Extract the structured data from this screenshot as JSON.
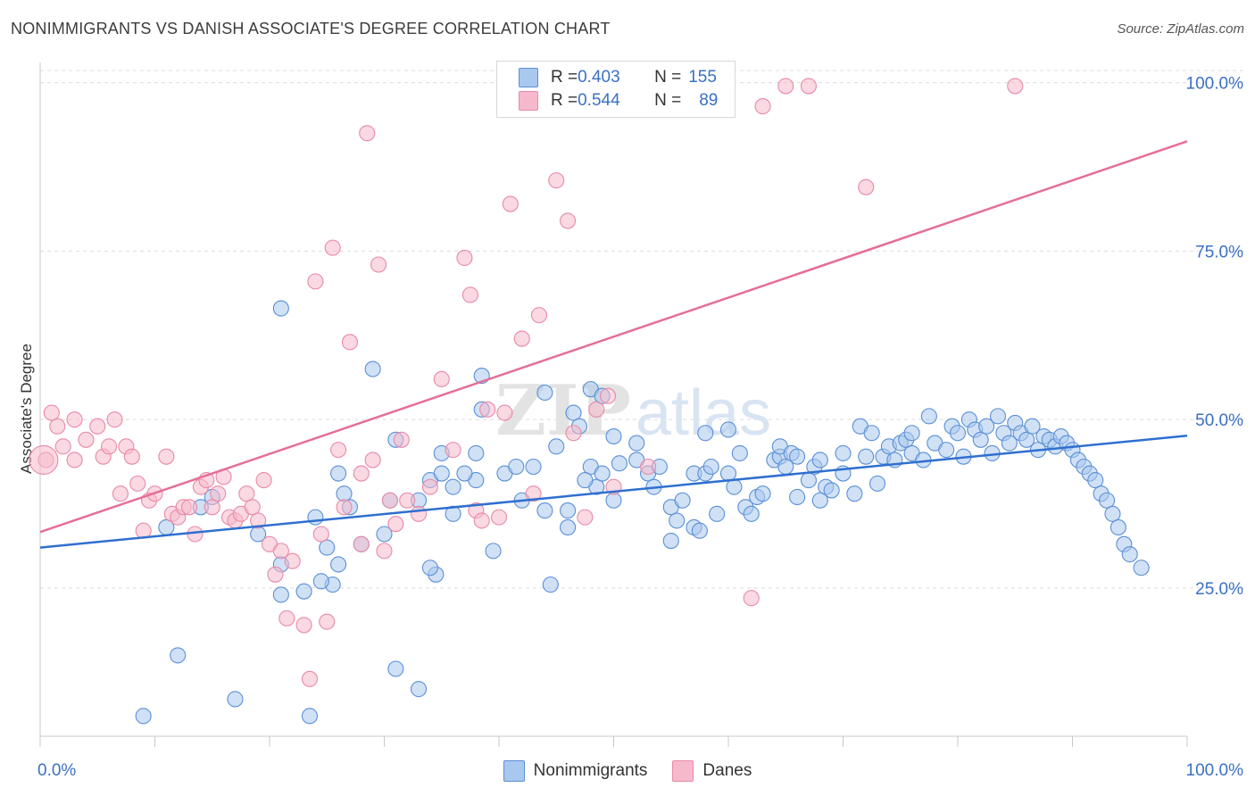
{
  "header": {
    "title": "NONIMMIGRANTS VS DANISH ASSOCIATE'S DEGREE CORRELATION CHART",
    "source": "Source: ZipAtlas.com"
  },
  "legend": {
    "rows": [
      {
        "r_label": "R = ",
        "r_value": "0.403",
        "n_label": "N = ",
        "n_value": "155"
      },
      {
        "r_label": "R = ",
        "r_value": "0.544",
        "n_label": "N = ",
        "n_value": "89"
      }
    ],
    "bottom": [
      "Nonimmigrants",
      "Danes"
    ]
  },
  "colors": {
    "blue_fill": "#a9c8ef",
    "blue_stroke": "#5a8fd6",
    "blue_line": "#2f6fcf",
    "pink_fill": "#f6b9cb",
    "pink_stroke": "#e889a8",
    "pink_line": "#e56e99",
    "tick_text": "#3b70c4"
  },
  "chart_data": {
    "type": "scatter",
    "title": "NONIMMIGRANTS VS DANISH ASSOCIATE'S DEGREE CORRELATION CHART",
    "xlabel": "",
    "ylabel": "Associate's Degree",
    "xlim": [
      0,
      100
    ],
    "ylim": [
      3,
      103
    ],
    "x_tick_labels": [
      {
        "value": 0,
        "label": "0.0%"
      },
      {
        "value": 100,
        "label": "100.0%"
      }
    ],
    "y_tick_labels": [
      {
        "value": 25,
        "label": "25.0%"
      },
      {
        "value": 50,
        "label": "50.0%"
      },
      {
        "value": 75,
        "label": "75.0%"
      },
      {
        "value": 100,
        "label": "100.0%"
      }
    ],
    "grid": "horizontal dashed",
    "watermark": "ZIPatlas",
    "series": [
      {
        "name": "Nonimmigrants",
        "r": 0.403,
        "n": 155,
        "trend": {
          "x": [
            0,
            100
          ],
          "y": [
            31.0,
            47.6
          ]
        },
        "points": [
          [
            9,
            6
          ],
          [
            12,
            15
          ],
          [
            11,
            34
          ],
          [
            17,
            8.5
          ],
          [
            21,
            66.5
          ],
          [
            23.5,
            6
          ],
          [
            23,
            24.5
          ],
          [
            21,
            24
          ],
          [
            25.5,
            25.5
          ],
          [
            21,
            28.5
          ],
          [
            26,
            42
          ],
          [
            27,
            37
          ],
          [
            26.5,
            39
          ],
          [
            24,
            35.5
          ],
          [
            25,
            31
          ],
          [
            28,
            31.5
          ],
          [
            24.5,
            26
          ],
          [
            26,
            28.5
          ],
          [
            29,
            57.5
          ],
          [
            30.5,
            38
          ],
          [
            31,
            47
          ],
          [
            33,
            38
          ],
          [
            34,
            41
          ],
          [
            35,
            45
          ],
          [
            34.5,
            27
          ],
          [
            34,
            28
          ],
          [
            35,
            42
          ],
          [
            36,
            36
          ],
          [
            38,
            41
          ],
          [
            38,
            45
          ],
          [
            38.5,
            56.5
          ],
          [
            38.5,
            51.5
          ],
          [
            39.5,
            30.5
          ],
          [
            40.5,
            42
          ],
          [
            41.5,
            43
          ],
          [
            42,
            38
          ],
          [
            43,
            43
          ],
          [
            44,
            54
          ],
          [
            44,
            36.5
          ],
          [
            44.5,
            25.5
          ],
          [
            45,
            46
          ],
          [
            46,
            36.5
          ],
          [
            46,
            34
          ],
          [
            46.5,
            51
          ],
          [
            47,
            49
          ],
          [
            48,
            43
          ],
          [
            48,
            54.5
          ],
          [
            48.5,
            40
          ],
          [
            49,
            42
          ],
          [
            49,
            53.5
          ],
          [
            50,
            47.5
          ],
          [
            50.5,
            43.5
          ],
          [
            50,
            38
          ],
          [
            52,
            46.5
          ],
          [
            52,
            44
          ],
          [
            53,
            42
          ],
          [
            53.5,
            40
          ],
          [
            54,
            43
          ],
          [
            55,
            37
          ],
          [
            55.5,
            35
          ],
          [
            55,
            32
          ],
          [
            56,
            38
          ],
          [
            57,
            34
          ],
          [
            57,
            42
          ],
          [
            58,
            48
          ],
          [
            57.5,
            33.5
          ],
          [
            58,
            42
          ],
          [
            58.5,
            43
          ],
          [
            59,
            36
          ],
          [
            60,
            48.5
          ],
          [
            60.5,
            40
          ],
          [
            61,
            45
          ],
          [
            61.5,
            37
          ],
          [
            62,
            36
          ],
          [
            62.5,
            38.5
          ],
          [
            63,
            39
          ],
          [
            64,
            44
          ],
          [
            64.5,
            44.5
          ],
          [
            64.5,
            46
          ],
          [
            65,
            43
          ],
          [
            65.5,
            45
          ],
          [
            66,
            44.5
          ],
          [
            66,
            38.5
          ],
          [
            67,
            41
          ],
          [
            67.5,
            43
          ],
          [
            68,
            38
          ],
          [
            68,
            44
          ],
          [
            68.5,
            40
          ],
          [
            69,
            39.5
          ],
          [
            70,
            45
          ],
          [
            70,
            42
          ],
          [
            71,
            39
          ],
          [
            71.5,
            49
          ],
          [
            72,
            44.5
          ],
          [
            72.5,
            48
          ],
          [
            73,
            40.5
          ],
          [
            73.5,
            44.5
          ],
          [
            74,
            46
          ],
          [
            74.5,
            44
          ],
          [
            75,
            46.5
          ],
          [
            75.5,
            47
          ],
          [
            76,
            45
          ],
          [
            76,
            48
          ],
          [
            77,
            44
          ],
          [
            77.5,
            50.5
          ],
          [
            78,
            46.5
          ],
          [
            79,
            45.5
          ],
          [
            79.5,
            49
          ],
          [
            80,
            48
          ],
          [
            80.5,
            44.5
          ],
          [
            81,
            50
          ],
          [
            81.5,
            48.5
          ],
          [
            82,
            47
          ],
          [
            82.5,
            49
          ],
          [
            83,
            45
          ],
          [
            83.5,
            50.5
          ],
          [
            84,
            48
          ],
          [
            84.5,
            46.5
          ],
          [
            85,
            49.5
          ],
          [
            85.5,
            48
          ],
          [
            86,
            47
          ],
          [
            86.5,
            49
          ],
          [
            87,
            45.5
          ],
          [
            87.5,
            47.5
          ],
          [
            88,
            47
          ],
          [
            88.5,
            46
          ],
          [
            89,
            47.5
          ],
          [
            89.5,
            46.5
          ],
          [
            90,
            45.5
          ],
          [
            90.5,
            44
          ],
          [
            91,
            43
          ],
          [
            91.5,
            42
          ],
          [
            92,
            41
          ],
          [
            92.5,
            39
          ],
          [
            93,
            38
          ],
          [
            93.5,
            36
          ],
          [
            94,
            34
          ],
          [
            94.5,
            31.5
          ],
          [
            95,
            30
          ],
          [
            96,
            28
          ],
          [
            14,
            37
          ],
          [
            19,
            33
          ],
          [
            30,
            33
          ],
          [
            15,
            38.5
          ],
          [
            33,
            10
          ],
          [
            31,
            13
          ],
          [
            36,
            40
          ],
          [
            37,
            42
          ],
          [
            47.5,
            41
          ],
          [
            60,
            42
          ]
        ]
      },
      {
        "name": "Danes",
        "r": 0.544,
        "n": 89,
        "trend": {
          "x": [
            0,
            100
          ],
          "y": [
            33.3,
            91.3
          ]
        },
        "points": [
          [
            0.5,
            44
          ],
          [
            1,
            51
          ],
          [
            1.5,
            49
          ],
          [
            2,
            46
          ],
          [
            3,
            44
          ],
          [
            3,
            50
          ],
          [
            4,
            47
          ],
          [
            5,
            49
          ],
          [
            5.5,
            44.5
          ],
          [
            6,
            46
          ],
          [
            6.5,
            50
          ],
          [
            7,
            39
          ],
          [
            7.5,
            46
          ],
          [
            8,
            44.5
          ],
          [
            8.5,
            40.5
          ],
          [
            9,
            33.5
          ],
          [
            9.5,
            38
          ],
          [
            10,
            39
          ],
          [
            11,
            44.5
          ],
          [
            11.5,
            36
          ],
          [
            12,
            35.5
          ],
          [
            12.5,
            37
          ],
          [
            13,
            37
          ],
          [
            13.5,
            33
          ],
          [
            14,
            40
          ],
          [
            14.5,
            41
          ],
          [
            15,
            37
          ],
          [
            15.5,
            39
          ],
          [
            16,
            41.5
          ],
          [
            16.5,
            35.5
          ],
          [
            17,
            35
          ],
          [
            17.5,
            36
          ],
          [
            18,
            39
          ],
          [
            18.5,
            37
          ],
          [
            19,
            35
          ],
          [
            19.5,
            41
          ],
          [
            20,
            31.5
          ],
          [
            20.5,
            27
          ],
          [
            21,
            30.5
          ],
          [
            21.5,
            20.5
          ],
          [
            22,
            29
          ],
          [
            23,
            19.5
          ],
          [
            23.5,
            11.5
          ],
          [
            24,
            70.5
          ],
          [
            25,
            20
          ],
          [
            25.5,
            75.5
          ],
          [
            26,
            45.5
          ],
          [
            26.5,
            37
          ],
          [
            27,
            61.5
          ],
          [
            28,
            31.5
          ],
          [
            28.5,
            92.5
          ],
          [
            29,
            44
          ],
          [
            29.5,
            73
          ],
          [
            30,
            30.5
          ],
          [
            31,
            34.5
          ],
          [
            31.5,
            47
          ],
          [
            32,
            38
          ],
          [
            33,
            36
          ],
          [
            34,
            40
          ],
          [
            35,
            56
          ],
          [
            36,
            45.5
          ],
          [
            37,
            74
          ],
          [
            37.5,
            68.5
          ],
          [
            38,
            36.5
          ],
          [
            38.5,
            35
          ],
          [
            39,
            51.5
          ],
          [
            40,
            35.5
          ],
          [
            40.5,
            51
          ],
          [
            41,
            82
          ],
          [
            42,
            62
          ],
          [
            43,
            39
          ],
          [
            43.5,
            65.5
          ],
          [
            45,
            85.5
          ],
          [
            46,
            79.5
          ],
          [
            47.5,
            35.5
          ],
          [
            48.5,
            51.5
          ],
          [
            50,
            40
          ],
          [
            53,
            43
          ],
          [
            62,
            23.5
          ],
          [
            63,
            96.5
          ],
          [
            65,
            99.5
          ],
          [
            67,
            99.5
          ],
          [
            72,
            84.5
          ],
          [
            85,
            99.5
          ],
          [
            49.5,
            53.5
          ],
          [
            46.5,
            48
          ],
          [
            30.5,
            38
          ],
          [
            28,
            42
          ],
          [
            24.5,
            33
          ]
        ]
      }
    ]
  }
}
